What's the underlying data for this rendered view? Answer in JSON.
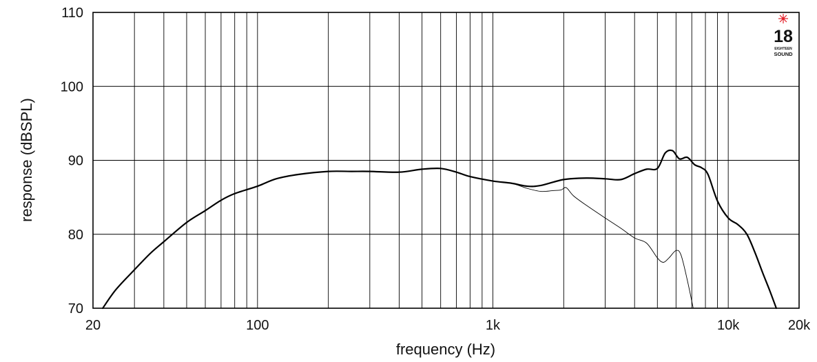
{
  "chart_data": {
    "type": "line",
    "xlabel": "frequency (Hz)",
    "ylabel": "response (dBSPL)",
    "x_scale": "log",
    "xlim": [
      20,
      20000
    ],
    "ylim": [
      70,
      110
    ],
    "grid": true,
    "x_ticks": [
      {
        "value": 20,
        "label": "20"
      },
      {
        "value": 100,
        "label": "100"
      },
      {
        "value": 1000,
        "label": "1k"
      },
      {
        "value": 10000,
        "label": "10k"
      },
      {
        "value": 20000,
        "label": "20k"
      }
    ],
    "y_ticks": [
      {
        "value": 70,
        "label": "70"
      },
      {
        "value": 80,
        "label": "80"
      },
      {
        "value": 90,
        "label": "90"
      },
      {
        "value": 100,
        "label": "100"
      },
      {
        "value": 110,
        "label": "110"
      }
    ],
    "x_gridlines": [
      30,
      40,
      50,
      60,
      70,
      80,
      90,
      100,
      200,
      300,
      400,
      500,
      600,
      700,
      800,
      900,
      1000,
      2000,
      3000,
      4000,
      5000,
      6000,
      7000,
      8000,
      9000,
      10000
    ],
    "y_gridlines": [
      80,
      90,
      100
    ],
    "series": [
      {
        "style": "thick",
        "color": "#000000",
        "x": [
          22,
          25,
          30,
          35,
          40,
          50,
          60,
          70,
          80,
          100,
          120,
          150,
          200,
          250,
          300,
          400,
          500,
          600,
          700,
          800,
          1000,
          1200,
          1400,
          1600,
          2000,
          2500,
          3000,
          3500,
          4000,
          4500,
          5000,
          5400,
          5800,
          6200,
          6700,
          7200,
          7700,
          8200,
          9000,
          10000,
          11000,
          12000,
          13000,
          14000,
          15000,
          16000
        ],
        "y": [
          70,
          72.5,
          75.2,
          77.4,
          79,
          81.6,
          83.2,
          84.6,
          85.5,
          86.5,
          87.5,
          88.1,
          88.5,
          88.5,
          88.5,
          88.4,
          88.8,
          88.9,
          88.4,
          87.8,
          87.2,
          86.9,
          86.5,
          86.6,
          87.4,
          87.6,
          87.5,
          87.4,
          88.2,
          88.8,
          88.9,
          91,
          91.3,
          90.2,
          90.4,
          89.4,
          89,
          88.1,
          84.5,
          82.2,
          81.3,
          80,
          77.5,
          74.8,
          72.4,
          70
        ]
      },
      {
        "style": "thin",
        "color": "#000000",
        "x": [
          1000,
          1200,
          1400,
          1600,
          1800,
          1950,
          2050,
          2200,
          2500,
          3000,
          3500,
          4000,
          4500,
          5000,
          5300,
          5600,
          6000,
          6300,
          6700,
          7100
        ],
        "y": [
          87.2,
          86.9,
          86.2,
          85.8,
          85.9,
          86,
          86.3,
          85.2,
          83.9,
          82.2,
          80.8,
          79.5,
          78.8,
          76.8,
          76.2,
          76.8,
          77.8,
          77.2,
          73.8,
          70
        ]
      }
    ]
  },
  "logo": {
    "number": "18",
    "small_text": "EIGHTEEN",
    "word": "SOUND",
    "star_color": "#e3222b"
  }
}
